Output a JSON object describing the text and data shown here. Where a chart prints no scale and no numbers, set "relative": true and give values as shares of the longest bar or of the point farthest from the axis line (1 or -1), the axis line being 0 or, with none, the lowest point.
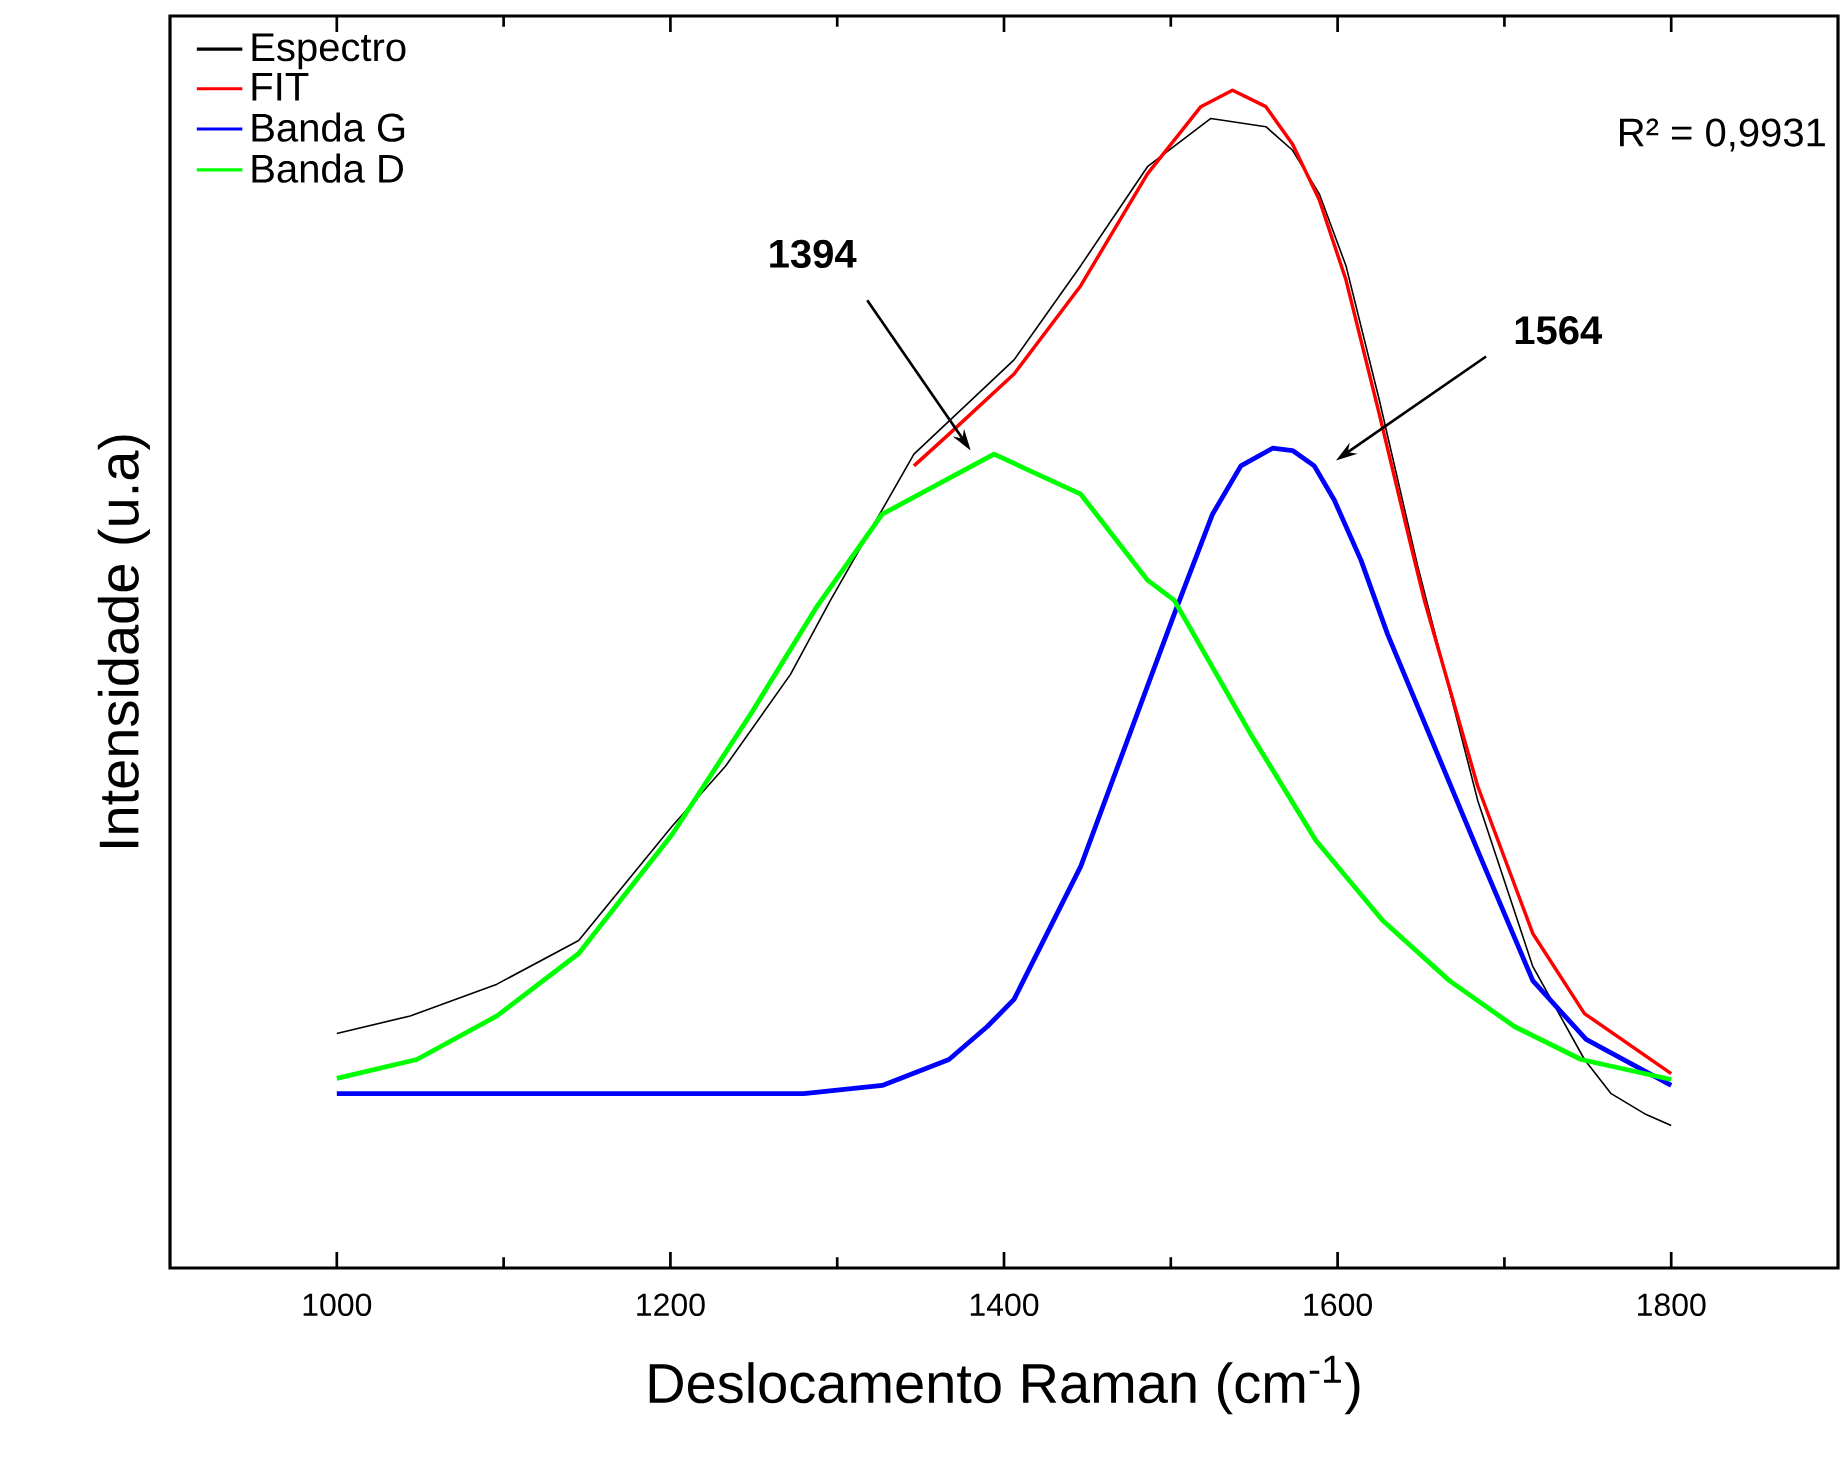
{
  "chart_data": {
    "type": "line",
    "relative": true,
    "xlabel": "Deslocamento Raman (cm$^{-1}$)",
    "ylabel": "Intensidade (u.a)",
    "xlim": [
      900,
      1900
    ],
    "xticks": [
      1000,
      1200,
      1400,
      1600,
      1800
    ],
    "legend": "top left",
    "grid": false,
    "series": [
      {
        "name": "Espectro",
        "color": "#000000",
        "x": [
          1000,
          1044,
          1096,
          1145,
          1201,
          1233,
          1272,
          1296,
          1346,
          1406,
          1446,
          1486,
          1524,
          1557,
          1573,
          1589,
          1605,
          1625,
          1648,
          1684,
          1717,
          1748,
          1764,
          1784,
          1800
        ],
        "values": [
          0.199,
          0.214,
          0.241,
          0.278,
          0.375,
          0.426,
          0.504,
          0.567,
          0.691,
          0.771,
          0.851,
          0.935,
          0.976,
          0.969,
          0.949,
          0.912,
          0.851,
          0.737,
          0.596,
          0.397,
          0.256,
          0.177,
          0.148,
          0.131,
          0.121
        ]
      },
      {
        "name": "FIT",
        "color": "#ff0000",
        "x": [
          1346,
          1367,
          1406,
          1446,
          1486,
          1518,
          1537,
          1557,
          1573,
          1589,
          1605,
          1625,
          1644,
          1652,
          1684,
          1717,
          1748,
          1800
        ],
        "values": [
          0.681,
          0.708,
          0.759,
          0.834,
          0.929,
          0.986,
          1.0,
          0.986,
          0.954,
          0.907,
          0.839,
          0.725,
          0.613,
          0.567,
          0.409,
          0.284,
          0.216,
          0.165
        ]
      },
      {
        "name": "Banda G",
        "color": "#0000ff",
        "x": [
          1000,
          1200,
          1280,
          1327,
          1367,
          1390,
          1406,
          1446,
          1486,
          1502,
          1525,
          1542,
          1561,
          1573,
          1586,
          1598,
          1614,
          1630,
          1685,
          1717,
          1749,
          1800
        ],
        "values": [
          0.148,
          0.148,
          0.148,
          0.155,
          0.177,
          0.205,
          0.228,
          0.341,
          0.494,
          0.555,
          0.64,
          0.681,
          0.696,
          0.694,
          0.681,
          0.652,
          0.601,
          0.538,
          0.351,
          0.244,
          0.194,
          0.155
        ]
      },
      {
        "name": "Banda D",
        "color": "#00ff00",
        "x": [
          1000,
          1048,
          1096,
          1145,
          1201,
          1248,
          1288,
          1327,
          1394,
          1446,
          1486,
          1502,
          1548,
          1587,
          1627,
          1667,
          1706,
          1746,
          1800
        ],
        "values": [
          0.161,
          0.177,
          0.214,
          0.267,
          0.368,
          0.47,
          0.562,
          0.64,
          0.691,
          0.657,
          0.584,
          0.567,
          0.453,
          0.363,
          0.295,
          0.244,
          0.205,
          0.177,
          0.16
        ]
      }
    ],
    "annotations": [
      "**1394**",
      "**1564**",
      "R² = 0,9931"
    ]
  }
}
